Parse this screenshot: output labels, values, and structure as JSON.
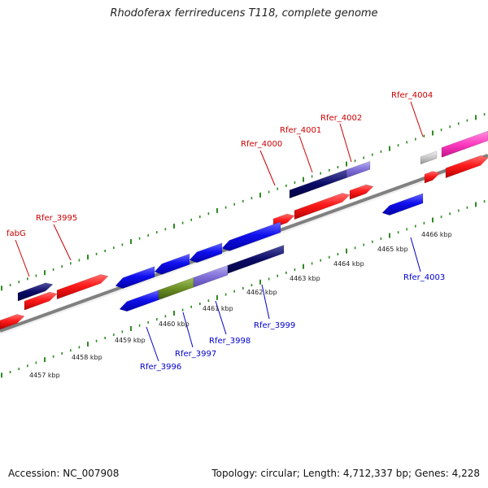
{
  "title": "Rhodoferax ferrireducens T118, complete genome",
  "footer": {
    "accession": "Accession: NC_007908",
    "summary": "Topology: circular; Length: 4,712,337 bp; Genes: 4,228"
  },
  "colors": {
    "forward_label": "#cc0000",
    "reverse_label": "#0000cc",
    "forward_gene": "#ff0000",
    "reverse_gene": "#0000ee",
    "backbone": "#808080",
    "tick": "#2e8b22"
  },
  "kbp_labels": [
    "4457 kbp",
    "4458 kbp",
    "4459 kbp",
    "4460 kbp",
    "4461 kbp",
    "4462 kbp",
    "4463 kbp",
    "4464 kbp",
    "4465 kbp",
    "4466 kbp"
  ],
  "genes": [
    {
      "name": "fabG",
      "strand": "forward"
    },
    {
      "name": "Rfer_3995",
      "strand": "forward"
    },
    {
      "name": "Rfer_4000",
      "strand": "forward"
    },
    {
      "name": "Rfer_4001",
      "strand": "forward"
    },
    {
      "name": "Rfer_4002",
      "strand": "forward"
    },
    {
      "name": "Rfer_4004",
      "strand": "forward"
    },
    {
      "name": "Rfer_3996",
      "strand": "reverse"
    },
    {
      "name": "Rfer_3997",
      "strand": "reverse"
    },
    {
      "name": "Rfer_3998",
      "strand": "reverse"
    },
    {
      "name": "Rfer_3999",
      "strand": "reverse"
    },
    {
      "name": "Rfer_4003",
      "strand": "reverse"
    }
  ]
}
